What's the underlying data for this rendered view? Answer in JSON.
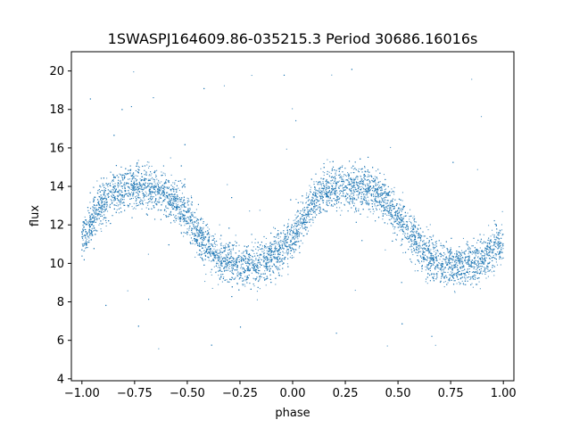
{
  "chart_data": {
    "type": "scatter",
    "title": "1SWASPJ164609.86-035215.3 Period 30686.16016s",
    "xlabel": "phase",
    "ylabel": "flux",
    "xlim": [
      -1.05,
      1.05
    ],
    "ylim": [
      3.9,
      21.0
    ],
    "xticks": [
      -1.0,
      -0.75,
      -0.5,
      -0.25,
      0.0,
      0.25,
      0.5,
      0.75,
      1.0
    ],
    "xtick_labels": [
      "−1.00",
      "−0.75",
      "−0.50",
      "−0.25",
      "0.00",
      "0.25",
      "0.50",
      "0.75",
      "1.00"
    ],
    "yticks": [
      4,
      6,
      8,
      10,
      12,
      14,
      16,
      18,
      20
    ],
    "ytick_labels": [
      "4",
      "6",
      "8",
      "10",
      "12",
      "14",
      "16",
      "18",
      "20"
    ],
    "grid": false,
    "point_color": "#1f77b4",
    "series": [
      {
        "phase_range": [
          -1.0,
          1.0
        ],
        "light_curve_profile": {
          "phase": [
            0.0,
            0.05,
            0.1,
            0.15,
            0.2,
            0.25,
            0.3,
            0.35,
            0.4,
            0.45,
            0.5,
            0.55,
            0.6,
            0.65,
            0.7,
            0.75,
            0.8,
            0.85,
            0.9,
            0.95,
            1.0
          ],
          "flux": [
            11.2,
            12.3,
            13.2,
            13.7,
            13.9,
            14.0,
            14.0,
            13.9,
            13.6,
            13.1,
            12.4,
            11.6,
            10.9,
            10.3,
            10.0,
            9.9,
            9.9,
            10.0,
            10.3,
            10.7,
            11.2
          ]
        },
        "scatter_spread": 0.55,
        "approx_points": 9000,
        "outlier_range": [
          4.6,
          20.2
        ]
      }
    ]
  }
}
